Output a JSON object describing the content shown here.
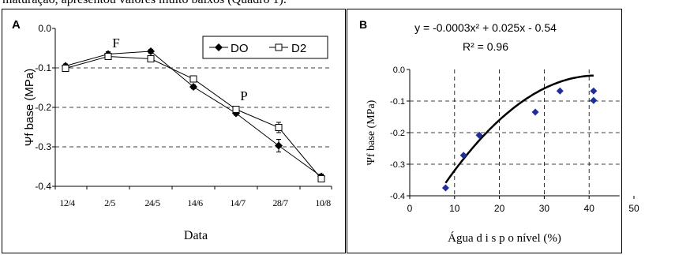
{
  "caption_fragment": "maturação, apresentou valores muito baixos (Quadro 1).",
  "chart_data": [
    {
      "panel": "A",
      "type": "line",
      "ylabel": "Ψf base (MPa)",
      "xlabel": "Data",
      "categories": [
        "12/4",
        "2/5",
        "24/5",
        "14/6",
        "14/7",
        "28/7",
        "10/8"
      ],
      "ylim": [
        -0.4,
        0.0
      ],
      "yticks": [
        "0.0",
        "-0.1",
        "-0.2",
        "-0.3",
        "-0.4"
      ],
      "grid": "horizontal dashed",
      "legend_position": "top-right",
      "annotations": [
        {
          "text": "F",
          "category": "2/5",
          "y": -0.048
        },
        {
          "text": "P",
          "category": "14/7",
          "y": -0.182
        }
      ],
      "series": [
        {
          "name": "DO",
          "marker": "filled-diamond",
          "values": [
            -0.095,
            -0.065,
            -0.058,
            -0.148,
            -0.215,
            -0.297,
            -0.375
          ],
          "errors": [
            0.005,
            0.006,
            0.005,
            0.005,
            0.005,
            0.016,
            0.006
          ]
        },
        {
          "name": "D2",
          "marker": "open-square",
          "values": [
            -0.101,
            -0.071,
            -0.077,
            -0.128,
            -0.205,
            -0.251,
            -0.381
          ],
          "errors": [
            0.005,
            0.006,
            0.006,
            0.006,
            0.007,
            0.013,
            0.006
          ]
        }
      ]
    },
    {
      "panel": "B",
      "type": "scatter",
      "equation": "y = -0.0003x² + 0.025x - 0.54",
      "r_squared": "R² = 0.96",
      "ylabel": "Ψf  base (MPa)",
      "xlabel": "Água d i s p o nível  (%)",
      "xlim": [
        0,
        50
      ],
      "ylim": [
        -0.4,
        0.0
      ],
      "xticks": [
        "0",
        "10",
        "20",
        "30",
        "40",
        "50"
      ],
      "yticks": [
        "0.0",
        "-0.1",
        "-0.2",
        "-0.3",
        "-0.4"
      ],
      "grid": "dashed",
      "trendline": {
        "a": -0.0003,
        "b": 0.025,
        "c": -0.54,
        "x_range": [
          8,
          41
        ]
      },
      "points": [
        {
          "x": 8,
          "y": -0.375
        },
        {
          "x": 12,
          "y": -0.272
        },
        {
          "x": 15.5,
          "y": -0.208
        },
        {
          "x": 28,
          "y": -0.135
        },
        {
          "x": 33.5,
          "y": -0.068
        },
        {
          "x": 41,
          "y": -0.068
        },
        {
          "x": 41,
          "y": -0.098
        }
      ],
      "point_color": "#1f2f9a"
    }
  ]
}
